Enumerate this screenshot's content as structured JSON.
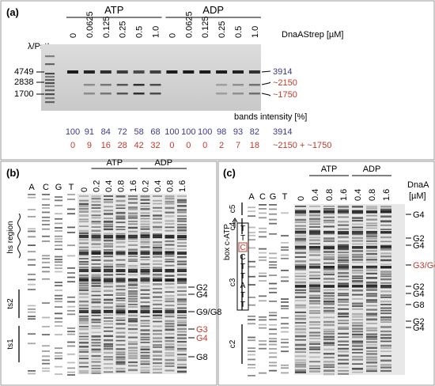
{
  "figure": {
    "frame_color": "#9a9a9a",
    "blue": "#3a3a8c",
    "red": "#c0392b",
    "panel_a": {
      "label": "(a)",
      "ladder_label": "λ/PstI",
      "group_labels": [
        "ATP",
        "ADP"
      ],
      "concentrations": [
        "0",
        "0.0625",
        "0.125",
        "0.25",
        "0.5",
        "1.0",
        "0",
        "0.0625",
        "0.125",
        "0.25",
        "0.5",
        "1.0"
      ],
      "unit_label": "DnaAStrep [µM]",
      "ladder_sizes": [
        "4749",
        "2838",
        "1700"
      ],
      "band_labels": {
        "top": "3914",
        "mid": "~2150",
        "low": "~1750"
      },
      "intensity_title": "bands intensity [%]",
      "intensity_row1": [
        "100",
        "91",
        "84",
        "72",
        "58",
        "68",
        "100",
        "100",
        "100",
        "98",
        "93",
        "82"
      ],
      "intensity_row1_label": "3914",
      "intensity_row2": [
        "0",
        "9",
        "16",
        "28",
        "42",
        "32",
        "0",
        "0",
        "0",
        "2",
        "7",
        "18"
      ],
      "intensity_row2_label": "~2150 + ~1750"
    },
    "panel_b": {
      "label": "(b)",
      "seq_lanes": [
        "A",
        "C",
        "G",
        "T"
      ],
      "group_labels": [
        "ATP",
        "ADP"
      ],
      "concentrations": [
        "0",
        "0.2",
        "0.4",
        "0.8",
        "1.6",
        "0.2",
        "0.4",
        "0.8",
        "1.6"
      ],
      "left_regions": [
        "hs region",
        "ts2",
        "ts1"
      ],
      "right_labels": [
        {
          "text": "G2",
          "color": "black"
        },
        {
          "text": "G4",
          "color": "black"
        },
        {
          "text": "G9/G8",
          "color": "black"
        },
        {
          "text": "G3",
          "color": "red"
        },
        {
          "text": "G4",
          "color": "red"
        },
        {
          "text": "G8",
          "color": "black"
        }
      ]
    },
    "panel_c": {
      "label": "(c)",
      "seq_lanes": [
        "A",
        "C",
        "G",
        "T"
      ],
      "group_labels": [
        "ATP",
        "ADP"
      ],
      "unit_label": [
        "DnaA",
        "[µM]"
      ],
      "concentrations": [
        "0",
        "0.4",
        "0.8",
        "1.6",
        "0.4",
        "0.8",
        "1.6"
      ],
      "box_label": "box c-ATP",
      "box_sequence": [
        "T",
        "T",
        "C",
        "C",
        "T",
        "T",
        "A",
        "T",
        "T"
      ],
      "region_labels": [
        "c5",
        "c4",
        "c3",
        "c2"
      ],
      "right_labels": [
        {
          "text": "G4",
          "color": "black"
        },
        {
          "text": "G2",
          "color": "black"
        },
        {
          "text": "G4",
          "color": "black"
        },
        {
          "text": "G3/G4",
          "color": "red"
        },
        {
          "text": "G2",
          "color": "black"
        },
        {
          "text": "G4",
          "color": "black"
        },
        {
          "text": "G8",
          "color": "black"
        },
        {
          "text": "G2",
          "color": "black"
        },
        {
          "text": "G4",
          "color": "black"
        }
      ]
    }
  }
}
